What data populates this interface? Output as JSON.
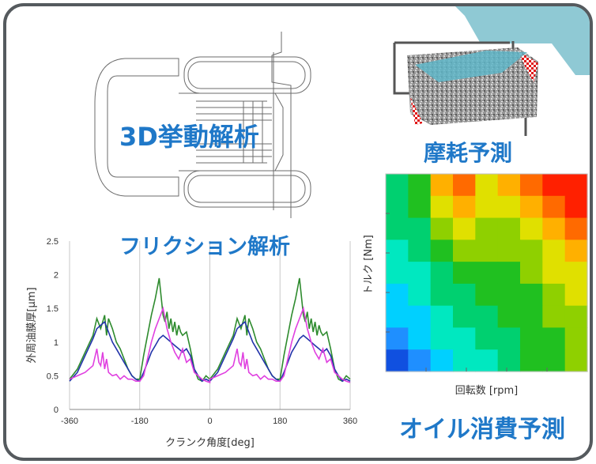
{
  "labels": {
    "behavior_3d": "3D挙動解析",
    "friction": "フリクション解析",
    "wear": "摩耗予測",
    "oil": "オイル消費予測"
  },
  "chart_data": [
    {
      "type": "line",
      "title": "",
      "xlabel": "クランク角度[deg]",
      "ylabel": "外周油膜厚[μm]",
      "xlim": [
        -360,
        360
      ],
      "ylim": [
        0,
        2.5
      ],
      "xticks": [
        -360,
        -180,
        0,
        180,
        360
      ],
      "yticks": [
        0,
        0.5,
        1,
        1.5,
        2,
        2.5
      ],
      "grid": "vertical",
      "series": [
        {
          "color": "#2e8b2e",
          "x": [
            -360,
            -340,
            -320,
            -300,
            -290,
            -280,
            -270,
            -265,
            -260,
            -250,
            -240,
            -230,
            -220,
            -210,
            -200,
            -190,
            -180,
            -170,
            -160,
            -150,
            -140,
            -130,
            -120,
            -115,
            -110,
            -105,
            -100,
            -95,
            -90,
            -85,
            -80,
            -75,
            -70,
            -60,
            -50,
            -40,
            -30,
            -20,
            -10,
            0
          ],
          "y": [
            0.45,
            0.6,
            0.85,
            1.1,
            1.35,
            1.2,
            1.4,
            1.1,
            1.35,
            1.2,
            1.0,
            0.9,
            0.75,
            0.6,
            0.5,
            0.45,
            0.45,
            0.8,
            1.1,
            1.4,
            1.65,
            1.95,
            1.4,
            1.3,
            1.45,
            1.2,
            1.35,
            1.15,
            1.3,
            1.1,
            1.25,
            1.15,
            1.1,
            1.15,
            0.9,
            0.6,
            0.45,
            0.42,
            0.5,
            0.45
          ]
        },
        {
          "color": "#2233aa",
          "x": [
            -360,
            -340,
            -320,
            -300,
            -290,
            -280,
            -270,
            -260,
            -250,
            -240,
            -230,
            -220,
            -210,
            -200,
            -190,
            -180,
            -170,
            -160,
            -150,
            -140,
            -130,
            -120,
            -110,
            -100,
            -90,
            -80,
            -70,
            -60,
            -50,
            -40,
            -30,
            -20,
            -10,
            0
          ],
          "y": [
            0.42,
            0.55,
            0.8,
            1.05,
            1.2,
            1.25,
            1.3,
            1.15,
            1.0,
            0.9,
            0.8,
            0.7,
            0.6,
            0.5,
            0.45,
            0.42,
            0.55,
            0.7,
            0.85,
            0.95,
            1.05,
            1.1,
            1.05,
            1.0,
            0.95,
            0.9,
            0.85,
            0.9,
            0.8,
            0.6,
            0.5,
            0.42,
            0.45,
            0.42
          ]
        },
        {
          "color": "#e040e0",
          "x": [
            -360,
            -340,
            -320,
            -300,
            -290,
            -285,
            -280,
            -275,
            -270,
            -265,
            -260,
            -250,
            -240,
            -230,
            -220,
            -210,
            -200,
            -190,
            -180,
            -170,
            -160,
            -150,
            -140,
            -130,
            -120,
            -110,
            -100,
            -90,
            -80,
            -70,
            -60,
            -50,
            -40,
            -30,
            -20,
            -10,
            0
          ],
          "y": [
            0.45,
            0.5,
            0.55,
            0.65,
            0.9,
            0.7,
            0.65,
            0.85,
            0.6,
            0.75,
            0.55,
            0.5,
            0.52,
            0.45,
            0.5,
            0.45,
            0.45,
            0.42,
            0.42,
            0.5,
            0.75,
            1.0,
            1.2,
            1.35,
            1.5,
            1.2,
            1.0,
            0.85,
            0.75,
            0.9,
            0.7,
            0.75,
            0.55,
            0.5,
            0.45,
            0.42,
            0.4
          ]
        }
      ]
    },
    {
      "type": "heatmap",
      "title": "",
      "xlabel": "回転数 [rpm]",
      "ylabel": "トルク [Nm]",
      "colormap": [
        "#1050e0",
        "#1f8fff",
        "#00d0ff",
        "#00e8c0",
        "#00d070",
        "#20c020",
        "#8fd000",
        "#e0e000",
        "#ffb000",
        "#ff6a00",
        "#ff2000"
      ],
      "rows": 9,
      "cols": 9,
      "values": [
        [
          4,
          5,
          8,
          9,
          7,
          8,
          9,
          10,
          10
        ],
        [
          4,
          5,
          7,
          8,
          7,
          7,
          8,
          9,
          10
        ],
        [
          4,
          4,
          6,
          7,
          6,
          6,
          7,
          8,
          9
        ],
        [
          3,
          4,
          5,
          6,
          6,
          6,
          6,
          7,
          8
        ],
        [
          3,
          3,
          4,
          5,
          5,
          5,
          6,
          7,
          7
        ],
        [
          2,
          3,
          4,
          4,
          5,
          5,
          5,
          6,
          7
        ],
        [
          2,
          2,
          3,
          4,
          4,
          5,
          5,
          6,
          6
        ],
        [
          1,
          2,
          3,
          3,
          4,
          4,
          5,
          5,
          6
        ],
        [
          0,
          1,
          2,
          3,
          3,
          4,
          5,
          5,
          6
        ]
      ]
    }
  ]
}
